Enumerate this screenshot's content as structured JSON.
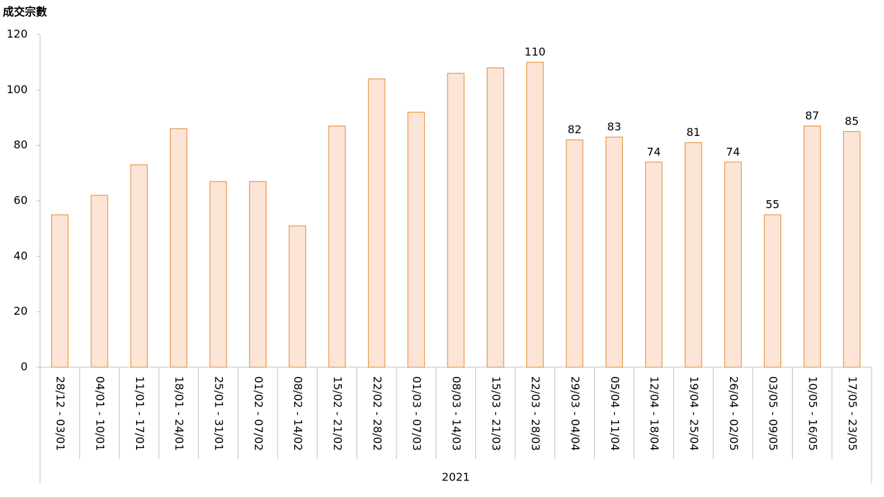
{
  "chart_data": {
    "type": "bar",
    "ylabel": "成交宗數",
    "categories": [
      "28/12 - 03/01",
      "04/01 - 10/01",
      "11/01 - 17/01",
      "18/01 - 24/01",
      "25/01 - 31/01",
      "01/02 - 07/02",
      "08/02 - 14/02",
      "15/02 - 21/02",
      "22/02 - 28/02",
      "01/03 - 07/03",
      "08/03 - 14/03",
      "15/03 - 21/03",
      "22/03 - 28/03",
      "29/03 - 04/04",
      "05/04 - 11/04",
      "12/04 - 18/04",
      "19/04 - 25/04",
      "26/04 - 02/05",
      "03/05 - 09/05",
      "10/05 - 16/05",
      "17/05 - 23/05"
    ],
    "category_group": "2021",
    "values": [
      55,
      62,
      73,
      86,
      67,
      67,
      51,
      87,
      104,
      92,
      106,
      108,
      110,
      82,
      83,
      74,
      81,
      74,
      55,
      87,
      85
    ],
    "value_labels": [
      null,
      null,
      null,
      null,
      null,
      null,
      null,
      null,
      null,
      null,
      null,
      null,
      "110",
      "82",
      "83",
      "74",
      "81",
      "74",
      "55",
      "87",
      "85"
    ],
    "color": "#fce4d6",
    "edge_color": "#e08a2e",
    "ylim": [
      0,
      120
    ],
    "yticks": [
      0,
      20,
      40,
      60,
      80,
      100,
      120
    ],
    "grid": false
  }
}
